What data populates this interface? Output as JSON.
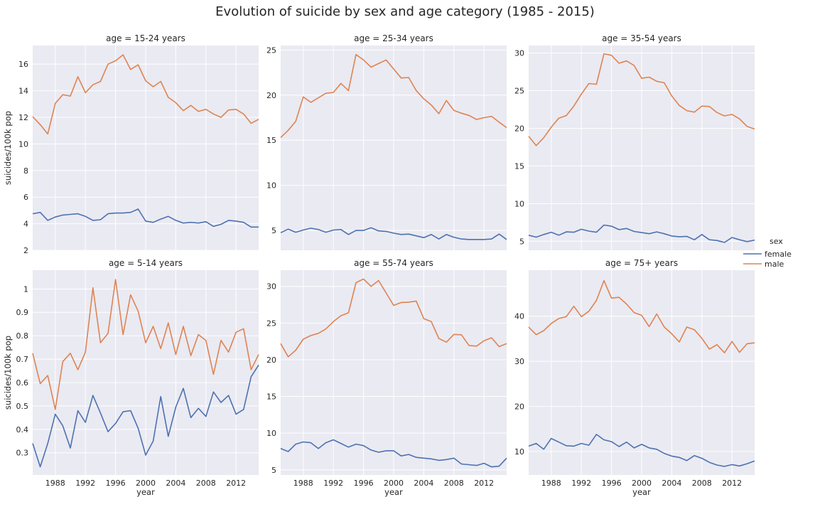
{
  "title": "Evolution of suicide by sex and age category (1985 - 2015)",
  "legend": {
    "title": "sex",
    "placement": "right",
    "entries": [
      {
        "name": "female",
        "color": "#4c72b0"
      },
      {
        "name": "male",
        "color": "#dd8452"
      }
    ]
  },
  "chart_data": [
    {
      "type": "line",
      "title": "age = 15-24 years",
      "xlabel": "",
      "ylabel": "suicides/100k pop",
      "xlim": [
        1985,
        2015
      ],
      "ylim": [
        2,
        17.4
      ],
      "yticks": [
        2,
        4,
        6,
        8,
        10,
        12,
        14,
        16
      ],
      "xticks": [
        1988,
        1992,
        1996,
        2000,
        2004,
        2008,
        2012
      ],
      "show_xticklabels": false,
      "x": [
        1985,
        1986,
        1987,
        1988,
        1989,
        1990,
        1991,
        1992,
        1993,
        1994,
        1995,
        1996,
        1997,
        1998,
        1999,
        2000,
        2001,
        2002,
        2003,
        2004,
        2005,
        2006,
        2007,
        2008,
        2009,
        2010,
        2011,
        2012,
        2013,
        2014,
        2015
      ],
      "series": [
        {
          "name": "female",
          "values": [
            4.75,
            4.85,
            4.25,
            4.5,
            4.65,
            4.7,
            4.75,
            4.55,
            4.25,
            4.3,
            4.75,
            4.8,
            4.8,
            4.85,
            5.1,
            4.2,
            4.1,
            4.35,
            4.55,
            4.25,
            4.05,
            4.1,
            4.05,
            4.15,
            3.8,
            3.95,
            4.25,
            4.2,
            4.1,
            3.75,
            3.75
          ]
        },
        {
          "name": "male",
          "values": [
            12.05,
            11.45,
            10.75,
            13.05,
            13.7,
            13.6,
            15.05,
            13.85,
            14.45,
            14.7,
            16.0,
            16.25,
            16.7,
            15.6,
            15.95,
            14.75,
            14.3,
            14.7,
            13.5,
            13.1,
            12.5,
            12.9,
            12.45,
            12.6,
            12.25,
            12.0,
            12.55,
            12.6,
            12.25,
            11.55,
            11.85
          ]
        }
      ]
    },
    {
      "type": "line",
      "title": "age = 25-34 years",
      "xlabel": "",
      "ylabel": "",
      "xlim": [
        1985,
        2015
      ],
      "ylim": [
        2.8,
        25.5
      ],
      "yticks": [
        5,
        10,
        15,
        20,
        25
      ],
      "xticks": [
        1988,
        1992,
        1996,
        2000,
        2004,
        2008,
        2012
      ],
      "show_xticklabels": false,
      "x": [
        1985,
        1986,
        1987,
        1988,
        1989,
        1990,
        1991,
        1992,
        1993,
        1994,
        1995,
        1996,
        1997,
        1998,
        1999,
        2000,
        2001,
        2002,
        2003,
        2004,
        2005,
        2006,
        2007,
        2008,
        2009,
        2010,
        2011,
        2012,
        2013,
        2014,
        2015
      ],
      "series": [
        {
          "name": "female",
          "values": [
            4.75,
            5.15,
            4.8,
            5.05,
            5.25,
            5.1,
            4.8,
            5.05,
            5.1,
            4.55,
            5.0,
            5.0,
            5.3,
            4.95,
            4.9,
            4.7,
            4.55,
            4.6,
            4.4,
            4.2,
            4.55,
            4.05,
            4.55,
            4.25,
            4.05,
            4.0,
            4.0,
            4.0,
            4.05,
            4.6,
            4.0
          ]
        },
        {
          "name": "male",
          "values": [
            15.3,
            16.1,
            17.1,
            19.8,
            19.2,
            19.7,
            20.2,
            20.3,
            21.3,
            20.5,
            24.5,
            23.9,
            23.1,
            23.5,
            23.9,
            22.9,
            21.9,
            21.95,
            20.5,
            19.6,
            18.9,
            17.95,
            19.4,
            18.3,
            18.0,
            17.75,
            17.3,
            17.5,
            17.65,
            17.0,
            16.4
          ]
        }
      ]
    },
    {
      "type": "line",
      "title": "age = 35-54 years",
      "xlabel": "",
      "ylabel": "",
      "xlim": [
        1985,
        2015
      ],
      "ylim": [
        3.8,
        31.0
      ],
      "yticks": [
        5,
        10,
        15,
        20,
        25,
        30
      ],
      "xticks": [
        1988,
        1992,
        1996,
        2000,
        2004,
        2008,
        2012
      ],
      "show_xticklabels": false,
      "x": [
        1985,
        1986,
        1987,
        1988,
        1989,
        1990,
        1991,
        1992,
        1993,
        1994,
        1995,
        1996,
        1997,
        1998,
        1999,
        2000,
        2001,
        2002,
        2003,
        2004,
        2005,
        2006,
        2007,
        2008,
        2009,
        2010,
        2011,
        2012,
        2013,
        2014,
        2015
      ],
      "series": [
        {
          "name": "female",
          "values": [
            5.8,
            5.55,
            5.9,
            6.2,
            5.8,
            6.25,
            6.2,
            6.6,
            6.35,
            6.2,
            7.15,
            7.0,
            6.55,
            6.7,
            6.3,
            6.15,
            6.0,
            6.25,
            6.0,
            5.7,
            5.6,
            5.65,
            5.2,
            5.9,
            5.2,
            5.1,
            4.85,
            5.5,
            5.2,
            4.95,
            5.15
          ]
        },
        {
          "name": "male",
          "values": [
            18.95,
            17.7,
            18.75,
            20.15,
            21.35,
            21.7,
            22.95,
            24.55,
            25.95,
            25.85,
            29.9,
            29.7,
            28.65,
            28.95,
            28.35,
            26.65,
            26.8,
            26.25,
            26.05,
            24.3,
            23.05,
            22.35,
            22.15,
            22.95,
            22.9,
            22.1,
            21.65,
            21.85,
            21.25,
            20.25,
            19.9
          ]
        }
      ]
    },
    {
      "type": "line",
      "title": "age = 5-14 years",
      "xlabel": "year",
      "ylabel": "suicides/100k pop",
      "xlim": [
        1985,
        2015
      ],
      "ylim": [
        0.205,
        1.08
      ],
      "yticks": [
        0.3,
        0.4,
        0.5,
        0.6,
        0.7,
        0.8,
        0.9,
        1.0
      ],
      "xticks": [
        1988,
        1992,
        1996,
        2000,
        2004,
        2008,
        2012
      ],
      "show_xticklabels": true,
      "x": [
        1985,
        1986,
        1987,
        1988,
        1989,
        1990,
        1991,
        1992,
        1993,
        1994,
        1995,
        1996,
        1997,
        1998,
        1999,
        2000,
        2001,
        2002,
        2003,
        2004,
        2005,
        2006,
        2007,
        2008,
        2009,
        2010,
        2011,
        2012,
        2013,
        2014,
        2015
      ],
      "series": [
        {
          "name": "female",
          "values": [
            0.34,
            0.24,
            0.34,
            0.465,
            0.415,
            0.32,
            0.48,
            0.43,
            0.545,
            0.47,
            0.39,
            0.425,
            0.475,
            0.48,
            0.405,
            0.29,
            0.35,
            0.54,
            0.37,
            0.495,
            0.575,
            0.45,
            0.49,
            0.455,
            0.56,
            0.515,
            0.545,
            0.465,
            0.485,
            0.625,
            0.675
          ]
        },
        {
          "name": "male",
          "values": [
            0.725,
            0.595,
            0.63,
            0.485,
            0.69,
            0.725,
            0.655,
            0.73,
            1.005,
            0.77,
            0.81,
            1.04,
            0.805,
            0.975,
            0.905,
            0.77,
            0.84,
            0.745,
            0.855,
            0.72,
            0.84,
            0.715,
            0.805,
            0.78,
            0.635,
            0.78,
            0.73,
            0.815,
            0.83,
            0.655,
            0.72
          ]
        }
      ]
    },
    {
      "type": "line",
      "title": "age = 55-74 years",
      "xlabel": "year",
      "ylabel": "",
      "xlim": [
        1985,
        2015
      ],
      "ylim": [
        4.3,
        32.2
      ],
      "yticks": [
        5,
        10,
        15,
        20,
        25,
        30
      ],
      "xticks": [
        1988,
        1992,
        1996,
        2000,
        2004,
        2008,
        2012
      ],
      "show_xticklabels": true,
      "x": [
        1985,
        1986,
        1987,
        1988,
        1989,
        1990,
        1991,
        1992,
        1993,
        1994,
        1995,
        1996,
        1997,
        1998,
        1999,
        2000,
        2001,
        2002,
        2003,
        2004,
        2005,
        2006,
        2007,
        2008,
        2009,
        2010,
        2011,
        2012,
        2013,
        2014,
        2015
      ],
      "series": [
        {
          "name": "female",
          "values": [
            7.9,
            7.5,
            8.5,
            8.8,
            8.7,
            7.9,
            8.7,
            9.1,
            8.6,
            8.1,
            8.5,
            8.3,
            7.7,
            7.4,
            7.6,
            7.6,
            6.9,
            7.1,
            6.7,
            6.6,
            6.5,
            6.3,
            6.4,
            6.6,
            5.8,
            5.7,
            5.6,
            5.9,
            5.4,
            5.5,
            6.6
          ]
        },
        {
          "name": "male",
          "values": [
            22.2,
            20.4,
            21.3,
            22.8,
            23.3,
            23.6,
            24.2,
            25.2,
            26.0,
            26.4,
            30.5,
            31.0,
            30.0,
            30.8,
            29.1,
            27.4,
            27.8,
            27.85,
            28.0,
            25.6,
            25.2,
            22.9,
            22.4,
            23.45,
            23.4,
            21.95,
            21.85,
            22.6,
            23.0,
            21.8,
            22.2
          ]
        }
      ]
    },
    {
      "type": "line",
      "title": "age = 75+ years",
      "xlabel": "year",
      "ylabel": "",
      "xlim": [
        1985,
        2015
      ],
      "ylim": [
        4.8,
        50.2
      ],
      "yticks": [
        10,
        20,
        30,
        40
      ],
      "xticks": [
        1988,
        1992,
        1996,
        2000,
        2004,
        2008,
        2012
      ],
      "show_xticklabels": true,
      "x": [
        1985,
        1986,
        1987,
        1988,
        1989,
        1990,
        1991,
        1992,
        1993,
        1994,
        1995,
        1996,
        1997,
        1998,
        1999,
        2000,
        2001,
        2002,
        2003,
        2004,
        2005,
        2006,
        2007,
        2008,
        2009,
        2010,
        2011,
        2012,
        2013,
        2014,
        2015
      ],
      "series": [
        {
          "name": "female",
          "values": [
            11.2,
            11.8,
            10.5,
            12.9,
            12.1,
            11.3,
            11.2,
            11.8,
            11.4,
            13.8,
            12.6,
            12.2,
            11.1,
            12.1,
            10.8,
            11.6,
            10.8,
            10.5,
            9.6,
            9.0,
            8.7,
            8.0,
            9.1,
            8.5,
            7.6,
            7.0,
            6.7,
            7.1,
            6.8,
            7.3,
            7.9
          ]
        },
        {
          "name": "male",
          "values": [
            37.6,
            35.9,
            36.8,
            38.4,
            39.5,
            39.9,
            42.2,
            39.9,
            41.1,
            43.5,
            47.9,
            44.0,
            44.2,
            42.7,
            40.8,
            40.2,
            37.7,
            40.5,
            37.6,
            36.1,
            34.3,
            37.6,
            37.0,
            35.1,
            32.7,
            33.7,
            31.9,
            34.4,
            32.0,
            33.9,
            34.1
          ]
        }
      ]
    }
  ]
}
